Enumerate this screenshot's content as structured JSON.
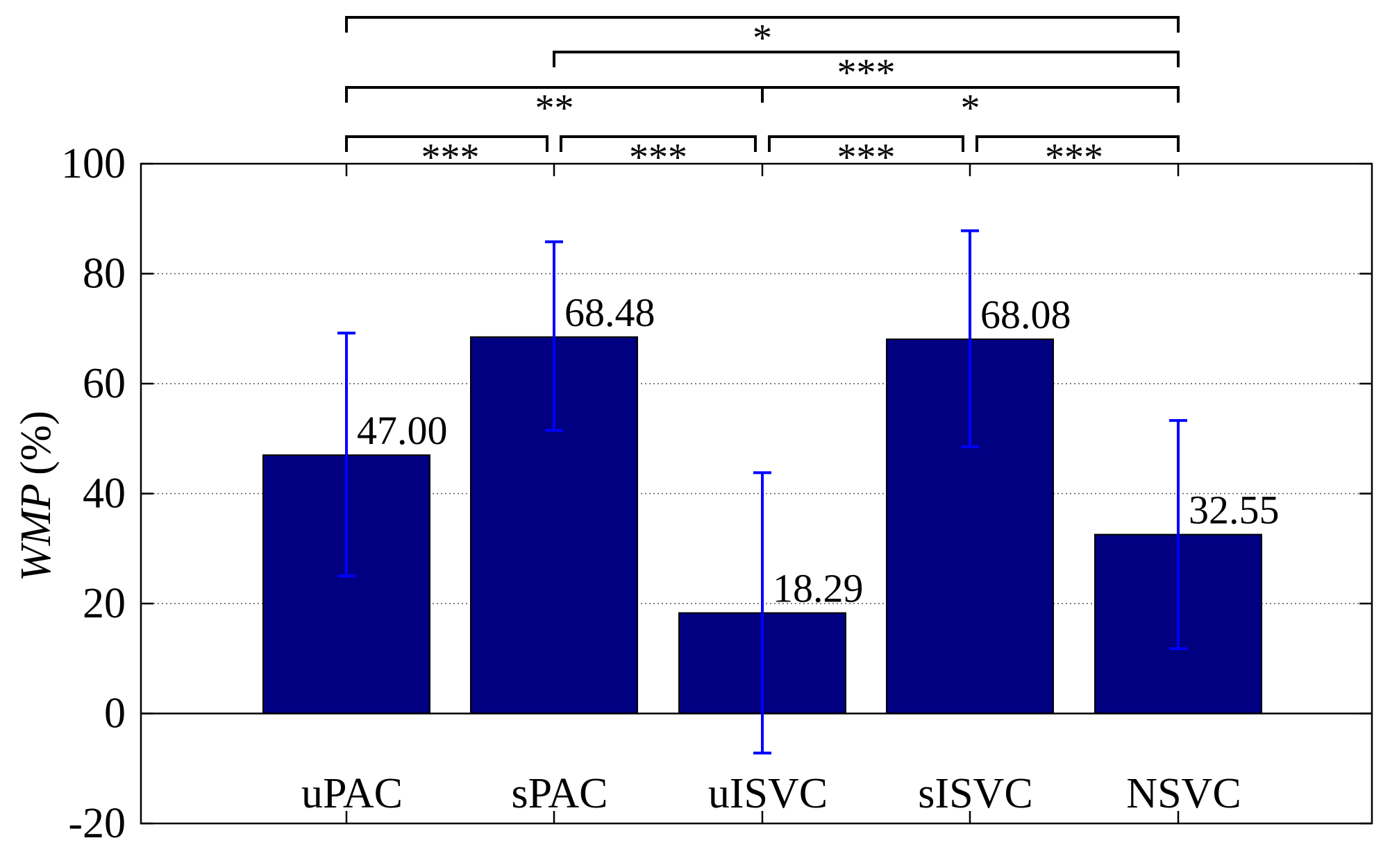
{
  "chart_data": {
    "type": "bar",
    "categories": [
      "uPAC",
      "sPAC",
      "uISVC",
      "sISVC",
      "NSVC"
    ],
    "values": [
      47.0,
      68.48,
      18.29,
      68.08,
      32.55
    ],
    "value_labels": [
      "47.00",
      "68.48",
      "18.29",
      "68.08",
      "32.55"
    ],
    "error_bars": [
      {
        "lower": 25.0,
        "upper": 69.2
      },
      {
        "lower": 51.5,
        "upper": 85.8
      },
      {
        "lower": -7.2,
        "upper": 43.8
      },
      {
        "lower": 48.5,
        "upper": 87.8
      },
      {
        "lower": 11.8,
        "upper": 53.3
      }
    ],
    "ylabel_italic": "WMP",
    "ylabel_unit": "(%)",
    "xlabel": "",
    "title": "",
    "ylim": [
      -20,
      100
    ],
    "yticks": [
      -20,
      0,
      20,
      40,
      60,
      80,
      100
    ],
    "ytick_labels": [
      "-20",
      "0",
      "20",
      "40",
      "60",
      "80",
      "100"
    ],
    "grid": "horizontal dotted",
    "significance": [
      {
        "from": 0,
        "to": 1,
        "label": "***",
        "level": 0
      },
      {
        "from": 1,
        "to": 2,
        "label": "***",
        "level": 0
      },
      {
        "from": 2,
        "to": 3,
        "label": "***",
        "level": 0
      },
      {
        "from": 3,
        "to": 4,
        "label": "***",
        "level": 0
      },
      {
        "from": 0,
        "to": 2,
        "label": "**",
        "level": 1
      },
      {
        "from": 2,
        "to": 4,
        "label": "*",
        "level": 1
      },
      {
        "from": 1,
        "to": 4,
        "label": "***",
        "level": 2
      },
      {
        "from": 0,
        "to": 4,
        "label": "*",
        "level": 3
      }
    ],
    "colors": {
      "bar": "#000080",
      "error": "#0000ff",
      "axis": "#000000",
      "grid": "#555555"
    }
  }
}
